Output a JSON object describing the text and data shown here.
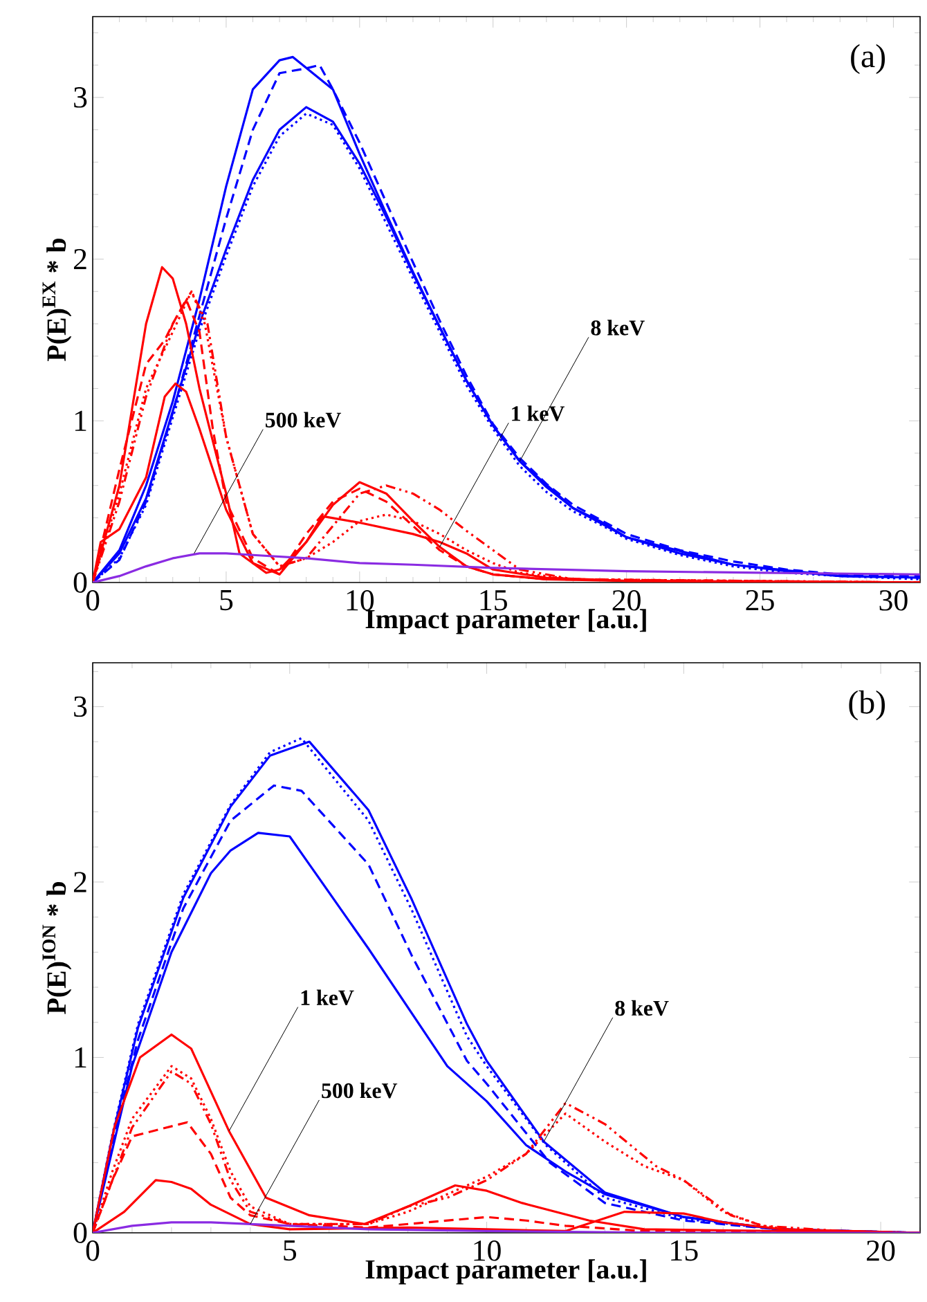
{
  "chart_data": [
    {
      "type": "line",
      "title": "(a)",
      "xlabel": "Impact parameter [a.u.]",
      "ylabel": "P(E)$^{EX}$ * b",
      "xlim": [
        0,
        31
      ],
      "ylim": [
        0,
        3.5
      ],
      "xticks": [
        0,
        {
          "value": 1,
          "label": null
        },
        {
          "value": 2,
          "label": null
        },
        {
          "value": 3,
          "label": null
        },
        {
          "value": 4,
          "label": null
        },
        5,
        {
          "value": 6,
          "label": null
        },
        {
          "value": 7,
          "label": null
        },
        {
          "value": 8,
          "label": null
        },
        {
          "value": 9,
          "label": null
        },
        10,
        {
          "value": 11,
          "label": null
        },
        {
          "value": 12,
          "label": null
        },
        {
          "value": 13,
          "label": null
        },
        {
          "value": 14,
          "label": null
        },
        15,
        {
          "value": 16,
          "label": null
        },
        {
          "value": 17,
          "label": null
        },
        {
          "value": 18,
          "label": null
        },
        {
          "value": 19,
          "label": null
        },
        20,
        {
          "value": 21,
          "label": null
        },
        {
          "value": 22,
          "label": null
        },
        {
          "value": 23,
          "label": null
        },
        {
          "value": 24,
          "label": null
        },
        25,
        {
          "value": 26,
          "label": null
        },
        {
          "value": 27,
          "label": null
        },
        {
          "value": 28,
          "label": null
        },
        {
          "value": 29,
          "label": null
        },
        30,
        {
          "value": 31,
          "label": null
        }
      ],
      "yticks": [
        0,
        {
          "value": 0.2,
          "label": null
        },
        {
          "value": 0.4,
          "label": null
        },
        {
          "value": 0.6,
          "label": null
        },
        {
          "value": 0.8,
          "label": null
        },
        1,
        {
          "value": 1.2,
          "label": null
        },
        {
          "value": 1.4,
          "label": null
        },
        {
          "value": 1.6,
          "label": null
        },
        {
          "value": 1.8,
          "label": null
        },
        2,
        {
          "value": 2.2,
          "label": null
        },
        {
          "value": 2.4,
          "label": null
        },
        {
          "value": 2.6,
          "label": null
        },
        {
          "value": 2.8,
          "label": null
        },
        3,
        {
          "value": 3.2,
          "label": null
        },
        {
          "value": 3.4,
          "label": null
        }
      ],
      "annotations": [
        {
          "text": "8 keV",
          "x": 16,
          "y": 0.75
        },
        {
          "text": "1 keV",
          "x": 13,
          "y": 0.22
        },
        {
          "text": "500 keV",
          "x": 3.8,
          "y": 0.18
        }
      ],
      "series": [
        {
          "color": "#0000ff",
          "line_style": "solid",
          "x": [
            0,
            1,
            2,
            3,
            4,
            5,
            6,
            7,
            8,
            9,
            10,
            11,
            12,
            13,
            14,
            15,
            16,
            17,
            18,
            19,
            20,
            22,
            24,
            26,
            28,
            31
          ],
          "values": [
            0,
            0.18,
            0.52,
            1.06,
            1.6,
            2.06,
            2.49,
            2.8,
            2.94,
            2.85,
            2.59,
            2.26,
            1.91,
            1.58,
            1.25,
            0.97,
            0.75,
            0.59,
            0.46,
            0.38,
            0.28,
            0.18,
            0.11,
            0.07,
            0.04,
            0.03
          ]
        },
        {
          "color": "#0000ff",
          "line_style": "dotted",
          "x": [
            0,
            1,
            2,
            3,
            4,
            5,
            6,
            7,
            8,
            9,
            10,
            11,
            12,
            13,
            14,
            15,
            16,
            17,
            18,
            19,
            20,
            22,
            24,
            26,
            28,
            31
          ],
          "values": [
            0,
            0.15,
            0.48,
            1.02,
            1.56,
            2.02,
            2.45,
            2.76,
            2.9,
            2.83,
            2.56,
            2.22,
            1.88,
            1.55,
            1.22,
            0.95,
            0.72,
            0.56,
            0.44,
            0.36,
            0.27,
            0.17,
            0.1,
            0.06,
            0.04,
            0.02
          ]
        },
        {
          "color": "#0000ff",
          "line_style": "dashed",
          "x": [
            0,
            1,
            2,
            3,
            4,
            5,
            6,
            7,
            8,
            8.5,
            9,
            10,
            11,
            12,
            13,
            14,
            15,
            16,
            17,
            18,
            19,
            20,
            22,
            24,
            26,
            28,
            31
          ],
          "values": [
            0,
            0.14,
            0.5,
            1.05,
            1.65,
            2.25,
            2.8,
            3.15,
            3.18,
            3.2,
            3.05,
            2.72,
            2.35,
            1.98,
            1.62,
            1.28,
            0.98,
            0.77,
            0.61,
            0.48,
            0.39,
            0.3,
            0.2,
            0.13,
            0.08,
            0.05,
            0.04
          ]
        },
        {
          "color": "#0000ff",
          "line_style": "solid",
          "x": [
            0,
            1,
            2,
            3,
            4,
            5,
            6,
            7,
            7.5,
            9,
            10,
            11,
            12,
            13,
            14,
            15,
            16,
            18,
            20,
            24,
            28,
            31
          ],
          "values": [
            0,
            0.2,
            0.6,
            1.12,
            1.75,
            2.45,
            3.05,
            3.23,
            3.25,
            3.05,
            2.65,
            2.28,
            1.92,
            1.58,
            1.25,
            0.97,
            0.75,
            0.46,
            0.28,
            0.11,
            0.04,
            0.03
          ]
        },
        {
          "color": "#ff0000",
          "line_style": "solid",
          "x": [
            0,
            0.3,
            1,
            2,
            2.7,
            3.1,
            3.5,
            4,
            5,
            6,
            7,
            8,
            9,
            10,
            11,
            12,
            13,
            14,
            15,
            17,
            20,
            31
          ],
          "values": [
            0,
            0.25,
            0.33,
            0.65,
            1.15,
            1.23,
            1.18,
            0.95,
            0.45,
            0.12,
            0.05,
            0.25,
            0.48,
            0.62,
            0.55,
            0.38,
            0.22,
            0.1,
            0.05,
            0.02,
            0.01,
            0
          ]
        },
        {
          "color": "#ff0000",
          "line_style": "solid",
          "x": [
            0,
            1,
            2,
            2.6,
            3,
            3.5,
            4,
            5,
            5.5,
            6.5,
            7,
            8,
            8.6,
            10,
            12,
            13,
            14,
            15,
            17,
            20,
            31
          ],
          "values": [
            0,
            0.6,
            1.6,
            1.95,
            1.88,
            1.6,
            1.2,
            0.55,
            0.18,
            0.06,
            0.08,
            0.25,
            0.41,
            0.37,
            0.3,
            0.25,
            0.18,
            0.08,
            0.03,
            0.01,
            0
          ]
        },
        {
          "color": "#ff0000",
          "line_style": "dashed",
          "x": [
            0,
            1,
            2,
            2.7,
            3,
            3.5,
            4,
            4.5,
            5,
            6,
            7,
            8,
            9,
            10,
            11,
            12,
            13,
            14,
            15,
            17,
            31
          ],
          "values": [
            0,
            0.7,
            1.35,
            1.5,
            1.6,
            1.75,
            1.55,
            0.95,
            0.5,
            0.15,
            0.05,
            0.3,
            0.5,
            0.58,
            0.5,
            0.35,
            0.2,
            0.1,
            0.05,
            0.02,
            0
          ]
        },
        {
          "color": "#ff0000",
          "line_style": "dotted",
          "x": [
            0,
            1,
            2,
            3,
            3.7,
            4.2,
            5,
            6,
            7,
            8,
            9,
            10,
            11,
            12,
            13,
            14,
            15,
            16,
            18,
            31
          ],
          "values": [
            0,
            0.55,
            1.2,
            1.55,
            1.8,
            1.6,
            0.9,
            0.3,
            0.1,
            0.15,
            0.25,
            0.38,
            0.42,
            0.38,
            0.3,
            0.2,
            0.12,
            0.06,
            0.02,
            0
          ]
        },
        {
          "color": "#ff0000",
          "line_style": "dashdotted",
          "x": [
            0,
            1,
            2,
            3,
            3.7,
            4.3,
            5,
            6,
            7,
            8,
            9,
            10,
            11,
            12,
            13,
            14,
            15,
            16,
            18,
            31
          ],
          "values": [
            0,
            0.5,
            1.15,
            1.6,
            1.8,
            1.6,
            0.9,
            0.3,
            0.1,
            0.15,
            0.35,
            0.55,
            0.6,
            0.55,
            0.45,
            0.32,
            0.2,
            0.08,
            0.02,
            0
          ]
        },
        {
          "color": "#8a2be2",
          "line_style": "solid",
          "x": [
            0,
            1,
            2,
            3,
            4,
            5,
            6,
            8,
            10,
            12,
            15,
            20,
            25,
            31
          ],
          "values": [
            0,
            0.04,
            0.1,
            0.15,
            0.18,
            0.18,
            0.17,
            0.15,
            0.12,
            0.11,
            0.09,
            0.07,
            0.06,
            0.05
          ]
        }
      ]
    },
    {
      "type": "line",
      "title": "(b)",
      "xlabel": "Impact parameter [a.u.]",
      "ylabel": "P(E)$^{ION}$ * b",
      "xlim": [
        0,
        21
      ],
      "ylim": [
        0,
        3.25
      ],
      "xticks": [
        0,
        {
          "value": 1,
          "label": null
        },
        {
          "value": 2,
          "label": null
        },
        {
          "value": 3,
          "label": null
        },
        {
          "value": 4,
          "label": null
        },
        5,
        {
          "value": 6,
          "label": null
        },
        {
          "value": 7,
          "label": null
        },
        {
          "value": 8,
          "label": null
        },
        {
          "value": 9,
          "label": null
        },
        10,
        {
          "value": 11,
          "label": null
        },
        {
          "value": 12,
          "label": null
        },
        {
          "value": 13,
          "label": null
        },
        {
          "value": 14,
          "label": null
        },
        15,
        {
          "value": 16,
          "label": null
        },
        {
          "value": 17,
          "label": null
        },
        {
          "value": 18,
          "label": null
        },
        {
          "value": 19,
          "label": null
        },
        20,
        {
          "value": 21,
          "label": null
        }
      ],
      "yticks": [
        0,
        {
          "value": 0.2,
          "label": null
        },
        {
          "value": 0.4,
          "label": null
        },
        {
          "value": 0.6,
          "label": null
        },
        {
          "value": 0.8,
          "label": null
        },
        1,
        {
          "value": 1.2,
          "label": null
        },
        {
          "value": 1.4,
          "label": null
        },
        {
          "value": 1.6,
          "label": null
        },
        {
          "value": 1.8,
          "label": null
        },
        2,
        {
          "value": 2.2,
          "label": null
        },
        {
          "value": 2.4,
          "label": null
        },
        {
          "value": 2.6,
          "label": null
        },
        {
          "value": 2.8,
          "label": null
        },
        3,
        {
          "value": 3.2,
          "label": null
        }
      ],
      "annotations": [
        {
          "text": "8 keV",
          "x": 11.45,
          "y": 0.52
        },
        {
          "text": "1 keV",
          "x": 3.46,
          "y": 0.58
        },
        {
          "text": "500 keV",
          "x": 4,
          "y": 0.05
        }
      ],
      "series": [
        {
          "color": "#0000ff",
          "line_style": "solid",
          "x": [
            0,
            0.5,
            1.15,
            2.3,
            3.5,
            4.5,
            5.5,
            7,
            8.1,
            9.5,
            10,
            11.45,
            13,
            15,
            17.4,
            21
          ],
          "values": [
            0,
            0.55,
            1.17,
            1.91,
            2.43,
            2.72,
            2.8,
            2.41,
            1.9,
            1.19,
            0.98,
            0.52,
            0.23,
            0.09,
            0.02,
            0
          ]
        },
        {
          "color": "#0000ff",
          "line_style": "dotted",
          "x": [
            0,
            0.5,
            1.15,
            2.3,
            3.5,
            4.5,
            5.3,
            7,
            8.1,
            9.5,
            10,
            11.5,
            13,
            15,
            17.4,
            21
          ],
          "values": [
            0,
            0.56,
            1.19,
            1.93,
            2.44,
            2.74,
            2.82,
            2.35,
            1.84,
            1.12,
            0.95,
            0.5,
            0.2,
            0.08,
            0.02,
            0
          ]
        },
        {
          "color": "#0000ff",
          "line_style": "dashed",
          "x": [
            0,
            0.5,
            1.15,
            2.3,
            3.5,
            4.6,
            5.3,
            7,
            8.1,
            9.5,
            10,
            11.6,
            13,
            15,
            17.4,
            21
          ],
          "values": [
            0,
            0.52,
            1.1,
            1.85,
            2.35,
            2.55,
            2.52,
            2.1,
            1.58,
            0.98,
            0.85,
            0.4,
            0.17,
            0.07,
            0.02,
            0
          ]
        },
        {
          "color": "#0000ff",
          "line_style": "solid",
          "x": [
            0,
            1,
            2,
            3,
            3.5,
            4.2,
            5,
            5.5,
            7,
            9,
            10,
            11,
            12,
            13,
            15,
            17.4,
            21
          ],
          "values": [
            0,
            0.95,
            1.6,
            2.05,
            2.18,
            2.28,
            2.26,
            2.1,
            1.62,
            0.95,
            0.75,
            0.5,
            0.35,
            0.22,
            0.09,
            0.02,
            0
          ]
        },
        {
          "color": "#ff0000",
          "line_style": "solid",
          "x": [
            0,
            0.56,
            1.2,
            2,
            2.5,
            3.46,
            4.4,
            5.5,
            6.9,
            8,
            9.2,
            10,
            10.9,
            12.6,
            14,
            21
          ],
          "values": [
            0,
            0.61,
            1,
            1.13,
            1.05,
            0.58,
            0.2,
            0.1,
            0.05,
            0.15,
            0.27,
            0.24,
            0.17,
            0.07,
            0.02,
            0
          ]
        },
        {
          "color": "#ff0000",
          "line_style": "solid",
          "x": [
            0,
            0.8,
            1.6,
            2,
            2.5,
            3,
            4,
            5,
            8,
            10,
            12,
            13.5,
            15,
            16,
            17.5,
            21
          ],
          "values": [
            0,
            0.12,
            0.3,
            0.29,
            0.25,
            0.16,
            0.05,
            0.02,
            0.03,
            0.02,
            0.01,
            0.12,
            0.11,
            0.06,
            0.02,
            0
          ]
        },
        {
          "color": "#ff0000",
          "line_style": "dashed",
          "x": [
            0,
            0.5,
            1,
            2.4,
            3,
            3.5,
            4,
            5,
            7,
            9,
            10,
            11,
            12,
            14,
            21
          ],
          "values": [
            0,
            0.3,
            0.55,
            0.63,
            0.45,
            0.2,
            0.1,
            0.05,
            0.03,
            0.07,
            0.09,
            0.07,
            0.04,
            0.01,
            0
          ]
        },
        {
          "color": "#ff0000",
          "line_style": "dotted",
          "x": [
            0,
            0.5,
            1,
            2,
            2.5,
            3,
            3.5,
            4,
            5,
            7,
            8,
            9,
            10,
            11,
            12,
            13,
            14,
            15,
            16,
            17,
            18,
            21
          ],
          "values": [
            0,
            0.35,
            0.65,
            0.95,
            0.88,
            0.65,
            0.35,
            0.15,
            0.05,
            0.05,
            0.12,
            0.22,
            0.32,
            0.45,
            0.68,
            0.52,
            0.38,
            0.3,
            0.12,
            0.04,
            0.01,
            0
          ]
        },
        {
          "color": "#ff0000",
          "line_style": "dashdotted",
          "x": [
            0,
            0.5,
            1,
            2,
            2.5,
            3,
            3.5,
            4,
            5,
            7,
            8,
            9,
            10,
            11,
            12,
            13,
            14.3,
            15,
            16.2,
            17,
            19,
            21
          ],
          "values": [
            0,
            0.3,
            0.6,
            0.92,
            0.85,
            0.62,
            0.3,
            0.12,
            0.05,
            0.05,
            0.15,
            0.2,
            0.3,
            0.45,
            0.74,
            0.62,
            0.38,
            0.3,
            0.1,
            0.04,
            0.01,
            0
          ]
        },
        {
          "color": "#8a2be2",
          "line_style": "solid",
          "x": [
            0,
            1,
            2,
            3,
            5,
            7,
            10,
            15,
            21
          ],
          "values": [
            0,
            0.04,
            0.06,
            0.06,
            0.04,
            0.02,
            0.01,
            0,
            0
          ]
        }
      ]
    }
  ]
}
